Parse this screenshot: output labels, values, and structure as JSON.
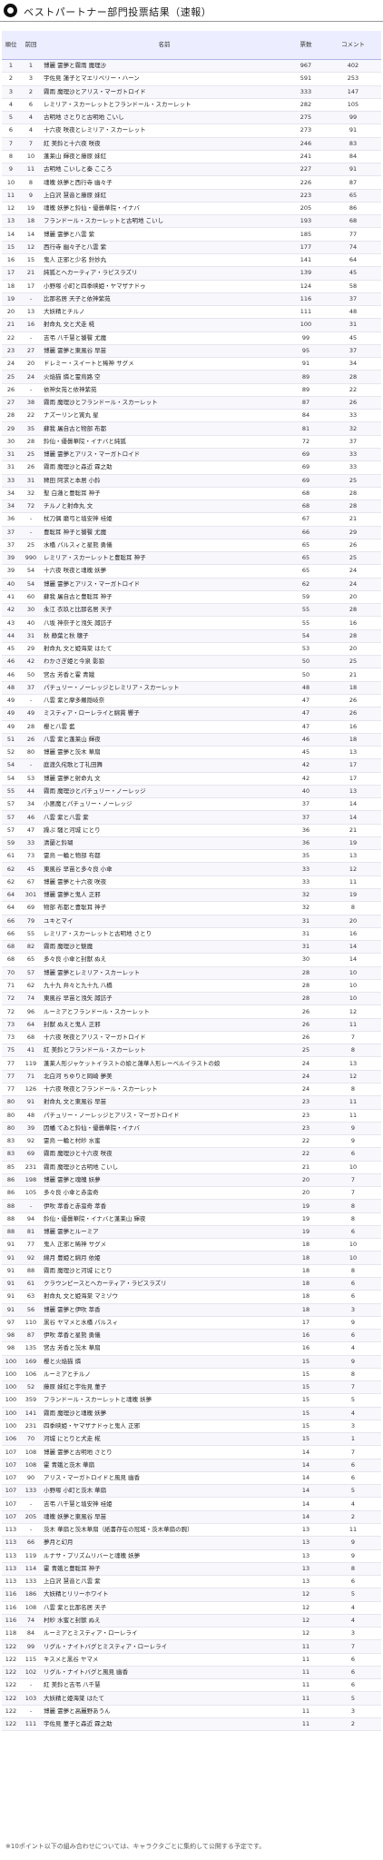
{
  "page": {
    "title": "ベストパートナー部門投票結果（速報）",
    "icon": "yin-yang-icon",
    "note": "※10ポイント以下の組み合わせについては、キャラクタごとに集約して公開する予定です。"
  },
  "table": {
    "headers": {
      "rank": "順位",
      "prev": "前回",
      "name": "名前",
      "votes": "票数",
      "comments": "コメント"
    },
    "rows": [
      [
        "1",
        "1",
        "博麗 霊夢と霧雨 魔理沙",
        "967",
        "402"
      ],
      [
        "2",
        "3",
        "宇佐見 蓮子とマエリベリー・ハーン",
        "591",
        "253"
      ],
      [
        "3",
        "2",
        "霧雨 魔理沙とアリス・マーガトロイド",
        "333",
        "147"
      ],
      [
        "4",
        "6",
        "レミリア・スカーレットとフランドール・スカーレット",
        "282",
        "105"
      ],
      [
        "5",
        "4",
        "古明地 さとりと古明地 こいし",
        "275",
        "99"
      ],
      [
        "6",
        "4",
        "十六夜 咲夜とレミリア・スカーレット",
        "273",
        "91"
      ],
      [
        "7",
        "7",
        "紅 美鈴と十六夜 咲夜",
        "246",
        "83"
      ],
      [
        "8",
        "10",
        "蓬莱山 輝夜と藤原 妹紅",
        "241",
        "84"
      ],
      [
        "9",
        "11",
        "古明地 こいしと秦 こころ",
        "227",
        "91"
      ],
      [
        "10",
        "8",
        "魂魄 妖夢と西行寺 幽々子",
        "226",
        "87"
      ],
      [
        "11",
        "9",
        "上白沢 慧音と藤原 妹紅",
        "223",
        "65"
      ],
      [
        "12",
        "19",
        "魂魄 妖夢と鈴仙・優曇華院・イナバ",
        "205",
        "86"
      ],
      [
        "13",
        "18",
        "フランドール・スカーレットと古明地 こいし",
        "193",
        "68"
      ],
      [
        "14",
        "14",
        "博麗 霊夢と八雲 紫",
        "185",
        "77"
      ],
      [
        "15",
        "12",
        "西行寺 幽々子と八雲 紫",
        "177",
        "74"
      ],
      [
        "16",
        "15",
        "鬼人 正邪と少名 針妙丸",
        "141",
        "64"
      ],
      [
        "17",
        "21",
        "純狐とヘカーティア・ラピスラズリ",
        "139",
        "45"
      ],
      [
        "18",
        "17",
        "小野塚 小町と四季映姫・ヤマザナドゥ",
        "124",
        "58"
      ],
      [
        "19",
        "-",
        "比那名居 天子と依神紫苑",
        "116",
        "37"
      ],
      [
        "20",
        "13",
        "大妖精とチルノ",
        "111",
        "48"
      ],
      [
        "21",
        "16",
        "射命丸 文と犬走 椛",
        "100",
        "31"
      ],
      [
        "22",
        "-",
        "吉弔 八千慧と饕餮 尤魔",
        "99",
        "45"
      ],
      [
        "23",
        "27",
        "博麗 霊夢と東風谷 早苗",
        "95",
        "37"
      ],
      [
        "24",
        "20",
        "ドレミー・スイートと稀神 サグメ",
        "91",
        "34"
      ],
      [
        "25",
        "24",
        "火焔猫 燐と霊烏路 空",
        "89",
        "28"
      ],
      [
        "26",
        "-",
        "依神女苑と依神紫苑",
        "89",
        "22"
      ],
      [
        "27",
        "38",
        "霧雨 魔理沙とフランドール・スカーレット",
        "87",
        "26"
      ],
      [
        "28",
        "22",
        "ナズーリンと寅丸 星",
        "84",
        "33"
      ],
      [
        "29",
        "35",
        "蘇我 屠自古と物部 布都",
        "81",
        "32"
      ],
      [
        "30",
        "28",
        "鈴仙・優曇華院・イナバと純狐",
        "72",
        "37"
      ],
      [
        "31",
        "25",
        "博麗 霊夢とアリス・マーガトロイド",
        "69",
        "33"
      ],
      [
        "31",
        "26",
        "霧雨 魔理沙と森近 霖之助",
        "69",
        "33"
      ],
      [
        "33",
        "31",
        "稗田 阿求と本居 小鈴",
        "69",
        "25"
      ],
      [
        "34",
        "32",
        "聖 白蓮と豊聡耳 神子",
        "68",
        "28"
      ],
      [
        "34",
        "72",
        "チルノと射命丸 文",
        "68",
        "28"
      ],
      [
        "36",
        "-",
        "杖刀偶 磨弓と埴安神 袿姫",
        "67",
        "21"
      ],
      [
        "37",
        "-",
        "豊聡耳 神子と饕餮 尤魔",
        "66",
        "29"
      ],
      [
        "37",
        "25",
        "水橋 パルスィと星熊 勇儀",
        "65",
        "26"
      ],
      [
        "39",
        "990",
        "レミリア・スカーレットと豊聡耳 神子",
        "65",
        "25"
      ],
      [
        "39",
        "54",
        "十六夜 咲夜と魂魄 妖夢",
        "65",
        "24"
      ],
      [
        "40",
        "54",
        "博麗 霊夢とアリス・マーガトロイド",
        "62",
        "24"
      ],
      [
        "41",
        "60",
        "蘇我 屠自古と豊聡耳 神子",
        "59",
        "20"
      ],
      [
        "42",
        "30",
        "永江 衣玖と比那名居 天子",
        "55",
        "28"
      ],
      [
        "43",
        "40",
        "八坂 神奈子と洩矢 諏訪子",
        "55",
        "16"
      ],
      [
        "44",
        "31",
        "秋 静葉と秋 穣子",
        "54",
        "28"
      ],
      [
        "45",
        "29",
        "射命丸 文と姫海棠 はたて",
        "53",
        "20"
      ],
      [
        "46",
        "42",
        "わかさぎ姫と今泉 影狼",
        "50",
        "25"
      ],
      [
        "46",
        "50",
        "宮古 芳香と霍 青娥",
        "50",
        "21"
      ],
      [
        "48",
        "37",
        "パチュリー・ノーレッジとレミリア・スカーレット",
        "48",
        "18"
      ],
      [
        "49",
        "-",
        "八雲 紫と摩多羅隠岐奈",
        "47",
        "26"
      ],
      [
        "49",
        "49",
        "ミスティア・ローレライと綿貫 響子",
        "47",
        "26"
      ],
      [
        "49",
        "28",
        "櫻と八雲 藍",
        "47",
        "16"
      ],
      [
        "51",
        "26",
        "八雲 紫と蓬莱山 輝夜",
        "46",
        "18"
      ],
      [
        "52",
        "80",
        "博麗 霊夢と茨木 華扇",
        "45",
        "13"
      ],
      [
        "54",
        "-",
        "庭渡久侘歌と丁礼田舞",
        "42",
        "17"
      ],
      [
        "54",
        "53",
        "博麗 霊夢と射命丸 文",
        "42",
        "17"
      ],
      [
        "55",
        "44",
        "霧雨 魔理沙とパチュリー・ノーレッジ",
        "40",
        "13"
      ],
      [
        "57",
        "34",
        "小悪魔とパチュリー・ノーレッジ",
        "37",
        "14"
      ],
      [
        "57",
        "46",
        "八雲 紫と八雲 紫",
        "37",
        "14"
      ],
      [
        "57",
        "47",
        "躁ぷ 騒と河城 にとり",
        "36",
        "21"
      ],
      [
        "59",
        "33",
        "清蘭と鈴瑚",
        "36",
        "19"
      ],
      [
        "61",
        "73",
        "霊烏 一輪と物部 布都",
        "35",
        "13"
      ],
      [
        "62",
        "45",
        "東風谷 早苗と多々良 小傘",
        "33",
        "12"
      ],
      [
        "62",
        "67",
        "博麗 霊夢と十六夜 咲夜",
        "33",
        "11"
      ],
      [
        "64",
        "301",
        "博麗 霊夢と鬼人 正邪",
        "32",
        "19"
      ],
      [
        "64",
        "69",
        "物部 布都と豊聡耳 神子",
        "32",
        "8"
      ],
      [
        "66",
        "79",
        "ユキとマイ",
        "31",
        "20"
      ],
      [
        "66",
        "55",
        "レミリア・スカーレットと古明地 さとり",
        "31",
        "16"
      ],
      [
        "68",
        "82",
        "霧雨 魔理沙と魅魔",
        "31",
        "14"
      ],
      [
        "68",
        "65",
        "多々良 小傘と封獣 ぬえ",
        "30",
        "14"
      ],
      [
        "70",
        "57",
        "博麗 霊夢とレミリア・スカーレット",
        "28",
        "10"
      ],
      [
        "71",
        "62",
        "九十九 弁々と九十九 八橋",
        "28",
        "10"
      ],
      [
        "72",
        "74",
        "東風谷 早苗と洩矢 諏訪子",
        "28",
        "10"
      ],
      [
        "72",
        "96",
        "ルーミアとフランドール・スカーレット",
        "26",
        "12"
      ],
      [
        "73",
        "64",
        "封獣 ぬえと鬼人 正邪",
        "26",
        "11"
      ],
      [
        "73",
        "68",
        "十六夜 咲夜とアリス・マーガトロイド",
        "26",
        "7"
      ],
      [
        "75",
        "41",
        "紅 美鈴とフランドール・スカーレット",
        "25",
        "8"
      ],
      [
        "77",
        "119",
        "蓬莱人形ジャケットイラストの娘と蓮華人形レーベルイラストの娘",
        "24",
        "13"
      ],
      [
        "77",
        "71",
        "北白河 ちゆりと岡崎 夢美",
        "24",
        "12"
      ],
      [
        "77",
        "126",
        "十六夜 咲夜とフランドール・スカーレット",
        "24",
        "8"
      ],
      [
        "80",
        "91",
        "射命丸 文と東風谷 早苗",
        "23",
        "11"
      ],
      [
        "80",
        "48",
        "パチュリー・ノーレッジとアリス・マーガトロイド",
        "23",
        "11"
      ],
      [
        "80",
        "39",
        "因幡 てゐと鈴仙・優曇華院・イナバ",
        "23",
        "9"
      ],
      [
        "83",
        "92",
        "霊烏 一輪と村紗 水蜜",
        "22",
        "9"
      ],
      [
        "83",
        "69",
        "霧雨 魔理沙と十六夜 咲夜",
        "22",
        "6"
      ],
      [
        "85",
        "231",
        "霧雨 魔理沙と古明地 こいし",
        "21",
        "10"
      ],
      [
        "86",
        "198",
        "博麗 霊夢と魂魄 妖夢",
        "20",
        "7"
      ],
      [
        "86",
        "105",
        "多々良 小傘と赤蛮奇",
        "20",
        "7"
      ],
      [
        "88",
        "-",
        "伊吹 萃香と赤蛮奇 萃香",
        "19",
        "8"
      ],
      [
        "88",
        "94",
        "鈴仙・優曇華院・イナバと蓬莱山 輝夜",
        "19",
        "8"
      ],
      [
        "88",
        "81",
        "博麗 霊夢とルーミア",
        "19",
        "6"
      ],
      [
        "91",
        "77",
        "鬼人 正邪と稀神 サグメ",
        "18",
        "10"
      ],
      [
        "91",
        "92",
        "綿月 豊姫と綿月 依姫",
        "18",
        "10"
      ],
      [
        "91",
        "88",
        "霧雨 魔理沙と河城 にとり",
        "18",
        "8"
      ],
      [
        "91",
        "61",
        "クラウンピースとヘカーティア・ラピスラズリ",
        "18",
        "6"
      ],
      [
        "91",
        "63",
        "射命丸 文と姫海棠 マミゾウ",
        "18",
        "6"
      ],
      [
        "91",
        "56",
        "博麗 霊夢と伊吹 萃香",
        "18",
        "3"
      ],
      [
        "97",
        "110",
        "黒谷 ヤマメと水橋 パルスィ",
        "17",
        "9"
      ],
      [
        "98",
        "87",
        "伊吹 萃香と星熊 勇儀",
        "16",
        "6"
      ],
      [
        "98",
        "135",
        "宮古 芳香と茨木 華扇",
        "16",
        "4"
      ],
      [
        "100",
        "169",
        "櫻と火焔猫 燐",
        "15",
        "9"
      ],
      [
        "100",
        "106",
        "ルーミアとチルノ",
        "15",
        "8"
      ],
      [
        "100",
        "52",
        "藤原 妹紅と宇佐見 菫子",
        "15",
        "7"
      ],
      [
        "100",
        "359",
        "フランドール・スカーレットと魂魄 妖夢",
        "15",
        "5"
      ],
      [
        "100",
        "141",
        "霧雨 魔理沙と魂魄 妖夢",
        "15",
        "4"
      ],
      [
        "100",
        "231",
        "四季映姫・ヤマザナドゥと鬼人 正邪",
        "15",
        "3"
      ],
      [
        "106",
        "70",
        "河城 にとりと犬走 椛",
        "15",
        "1"
      ],
      [
        "107",
        "108",
        "博麗 霊夢と古明地 さとり",
        "14",
        "7"
      ],
      [
        "107",
        "108",
        "霍 青娥と茨木 華扇",
        "14",
        "6"
      ],
      [
        "107",
        "90",
        "アリス・マーガトロイドと風見 幽香",
        "14",
        "6"
      ],
      [
        "107",
        "133",
        "小野塚 小町と茨木 華扇",
        "14",
        "5"
      ],
      [
        "107",
        "-",
        "吉弔 八千慧と埴安神 袿姫",
        "14",
        "4"
      ],
      [
        "107",
        "205",
        "魂魄 妖夢と東風谷 早苗",
        "14",
        "2"
      ],
      [
        "113",
        "-",
        "茨木 華扇と茨木華扇（紙書存在の冠域・茨木華扇の腕）",
        "13",
        "11"
      ],
      [
        "113",
        "66",
        "夢月と幻月",
        "13",
        "9"
      ],
      [
        "113",
        "119",
        "ルナサ・プリズムリバーと魂魄 妖夢",
        "13",
        "9"
      ],
      [
        "113",
        "114",
        "霍 青娥と豊聡耳 神子",
        "13",
        "8"
      ],
      [
        "113",
        "133",
        "上白沢 慧音と八雲 紫",
        "13",
        "6"
      ],
      [
        "116",
        "186",
        "大妖精とリリーホワイト",
        "12",
        "5"
      ],
      [
        "116",
        "108",
        "八雲 紫と比那名居 天子",
        "12",
        "4"
      ],
      [
        "116",
        "74",
        "村紗 水蜜と封獣 ぬえ",
        "12",
        "4"
      ],
      [
        "118",
        "84",
        "ルーミアとミスティア・ローレライ",
        "12",
        "3"
      ],
      [
        "122",
        "99",
        "リグル・ナイトバグとミスティア・ローレライ",
        "11",
        "7"
      ],
      [
        "122",
        "115",
        "キスメと黒谷 ヤマメ",
        "11",
        "6"
      ],
      [
        "122",
        "102",
        "リグル・ナイトバグと風見 幽香",
        "11",
        "6"
      ],
      [
        "122",
        "-",
        "紅 美鈴と吉弔 八千慧",
        "11",
        "6"
      ],
      [
        "122",
        "103",
        "大妖精と姫海棠 はたて",
        "11",
        "5"
      ],
      [
        "122",
        "-",
        "博麗 霊夢と高麗野あうん",
        "11",
        "3"
      ],
      [
        "122",
        "111",
        "宇佐見 菫子と森近 霖之助",
        "11",
        "2"
      ]
    ]
  }
}
